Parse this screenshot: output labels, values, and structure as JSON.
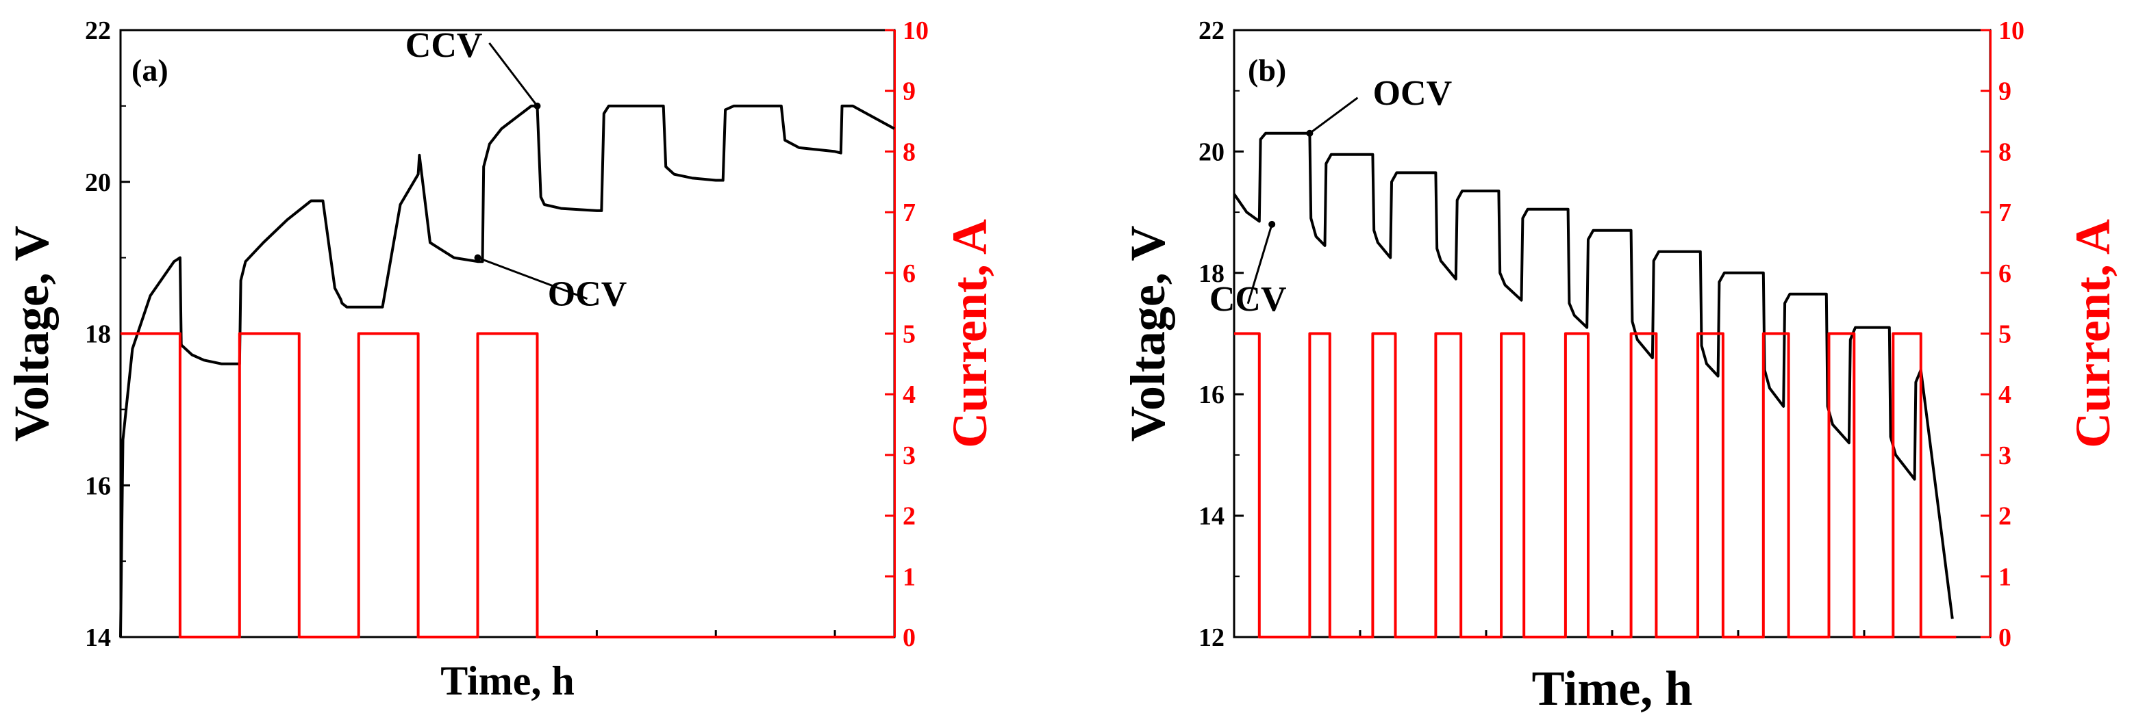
{
  "colors": {
    "voltage": "#000000",
    "current": "#ff0000"
  },
  "chart_data": [
    {
      "type": "line",
      "panel_label": "(a)",
      "xlabel": "Time, h",
      "ylabel": "Voltage, V",
      "y2label": "Current, A",
      "ylim": [
        14,
        22
      ],
      "yticks": [
        "14",
        "16",
        "18",
        "20",
        "22"
      ],
      "y2lim": [
        0,
        10
      ],
      "y2ticks": [
        "0",
        "1",
        "2",
        "3",
        "4",
        "5",
        "6",
        "7",
        "8",
        "9",
        "10"
      ],
      "xlim": [
        0,
        6.5
      ],
      "annotations": [
        {
          "text": "CCV",
          "x": 3.5,
          "y": 21.0
        },
        {
          "text": "OCV",
          "x": 3.0,
          "y": 19.0
        }
      ],
      "series": [
        {
          "name": "Voltage",
          "axis": "left",
          "x": [
            0,
            0.02,
            0.1,
            0.25,
            0.45,
            0.5,
            0.51,
            0.6,
            0.7,
            0.85,
            1.0,
            1.01,
            1.05,
            1.2,
            1.4,
            1.6,
            1.7,
            1.8,
            1.85,
            1.86,
            1.9,
            2.0,
            2.2,
            2.35,
            2.5,
            2.51,
            2.6,
            2.8,
            3.0,
            3.04,
            3.05,
            3.1,
            3.2,
            3.45,
            3.5,
            3.53,
            3.56,
            3.7,
            4.0,
            4.04,
            4.06,
            4.1,
            4.2,
            4.5,
            4.56,
            4.58,
            4.65,
            4.8,
            5.0,
            5.06,
            5.08,
            5.15,
            5.3,
            5.5,
            5.55,
            5.58,
            5.7,
            6.0,
            6.05,
            6.06,
            6.15,
            6.5
          ],
          "y": [
            14.0,
            16.6,
            17.8,
            18.5,
            18.95,
            19.0,
            17.85,
            17.72,
            17.65,
            17.6,
            17.6,
            18.7,
            18.95,
            19.2,
            19.5,
            19.75,
            19.75,
            18.6,
            18.45,
            18.4,
            18.35,
            18.35,
            18.35,
            19.7,
            20.1,
            20.35,
            19.2,
            19.0,
            18.95,
            18.95,
            20.2,
            20.5,
            20.7,
            21.0,
            21.0,
            19.8,
            19.7,
            19.65,
            19.62,
            19.62,
            20.9,
            21.0,
            21.0,
            21.0,
            21.0,
            20.2,
            20.1,
            20.05,
            20.02,
            20.02,
            20.95,
            21.0,
            21.0,
            21.0,
            21.0,
            20.55,
            20.45,
            20.4,
            20.38,
            21.0,
            21.0,
            20.7
          ]
        },
        {
          "name": "Current",
          "axis": "right",
          "x": [
            0,
            0.5,
            0.5,
            1.0,
            1.0,
            1.5,
            1.5,
            2.0,
            2.0,
            2.5,
            2.5,
            3.0,
            3.0,
            3.5,
            3.5,
            3.55,
            3.7,
            3.9,
            4.0,
            4.0,
            4.5,
            4.5,
            4.55,
            4.65,
            4.8,
            5.0,
            5.0,
            5.5,
            5.5,
            5.53,
            5.6,
            5.75,
            6.0,
            6.0,
            6.5
          ],
          "y": [
            5,
            5,
            0,
            0,
            5,
            5,
            0,
            0,
            5,
            5,
            0,
            0,
            5,
            5,
            0,
            0,
            0,
            0,
            0,
            0,
            0,
            0,
            0,
            0,
            0,
            0,
            0,
            0,
            0,
            0,
            0,
            0,
            0,
            0,
            0
          ]
        }
      ]
    },
    {
      "type": "line",
      "panel_label": "(b)",
      "xlabel": "Time, h",
      "ylabel": "Voltage, V",
      "y2label": "Current, A",
      "ylim": [
        12,
        22
      ],
      "yticks": [
        "12",
        "14",
        "16",
        "18",
        "20",
        "22"
      ],
      "y2lim": [
        0,
        10
      ],
      "y2ticks": [
        "0",
        "1",
        "2",
        "3",
        "4",
        "5",
        "6",
        "7",
        "8",
        "9",
        "10"
      ],
      "xlim": [
        0,
        6.0
      ],
      "annotations": [
        {
          "text": "OCV",
          "x": 0.6,
          "y": 20.3
        },
        {
          "text": "CCV",
          "x": 0.3,
          "y": 18.8
        }
      ],
      "series": [
        {
          "name": "Voltage",
          "axis": "left",
          "x": [
            0.0,
            0.1,
            0.2,
            0.21,
            0.25,
            0.6,
            0.61,
            0.65,
            0.72,
            0.73,
            0.77,
            1.1,
            1.11,
            1.14,
            1.24,
            1.25,
            1.29,
            1.6,
            1.61,
            1.64,
            1.76,
            1.77,
            1.81,
            2.1,
            2.11,
            2.15,
            2.28,
            2.29,
            2.33,
            2.65,
            2.66,
            2.7,
            2.8,
            2.81,
            2.85,
            3.15,
            3.16,
            3.2,
            3.32,
            3.33,
            3.37,
            3.7,
            3.71,
            3.75,
            3.84,
            3.85,
            3.89,
            4.2,
            4.21,
            4.25,
            4.36,
            4.37,
            4.41,
            4.7,
            4.71,
            4.75,
            4.88,
            4.89,
            4.93,
            5.2,
            5.21,
            5.25,
            5.4,
            5.41,
            5.45,
            5.7
          ],
          "y": [
            19.3,
            19.0,
            18.85,
            20.2,
            20.3,
            20.3,
            18.9,
            18.6,
            18.45,
            19.8,
            19.95,
            19.95,
            18.7,
            18.5,
            18.25,
            19.5,
            19.65,
            19.65,
            18.4,
            18.2,
            17.9,
            19.2,
            19.35,
            19.35,
            18.0,
            17.8,
            17.55,
            18.9,
            19.05,
            19.05,
            17.5,
            17.3,
            17.1,
            18.55,
            18.7,
            18.7,
            17.2,
            16.9,
            16.6,
            18.2,
            18.35,
            18.35,
            16.8,
            16.5,
            16.3,
            17.85,
            18.0,
            18.0,
            16.4,
            16.1,
            15.8,
            17.5,
            17.65,
            17.65,
            15.8,
            15.5,
            15.2,
            16.9,
            17.1,
            17.1,
            15.3,
            15.0,
            14.6,
            16.2,
            16.4,
            12.3
          ]
        },
        {
          "name": "Current",
          "axis": "right",
          "x": [
            0.0,
            0.2,
            0.2,
            0.6,
            0.6,
            0.76,
            0.76,
            1.1,
            1.1,
            1.28,
            1.28,
            1.6,
            1.6,
            1.8,
            1.8,
            2.12,
            2.12,
            2.3,
            2.3,
            2.63,
            2.63,
            2.81,
            2.81,
            3.15,
            3.15,
            3.35,
            3.35,
            3.68,
            3.68,
            3.88,
            3.88,
            4.2,
            4.2,
            4.4,
            4.4,
            4.72,
            4.72,
            4.92,
            4.92,
            5.23,
            5.23,
            5.45,
            5.45,
            5.73
          ],
          "y": [
            5,
            5,
            0,
            0,
            5,
            5,
            0,
            0,
            5,
            5,
            0,
            0,
            5,
            5,
            0,
            0,
            5,
            5,
            0,
            0,
            5,
            5,
            0,
            0,
            5,
            5,
            0,
            0,
            5,
            5,
            0,
            0,
            5,
            5,
            0,
            0,
            5,
            5,
            0,
            0,
            5,
            5,
            0,
            0
          ]
        }
      ]
    }
  ]
}
